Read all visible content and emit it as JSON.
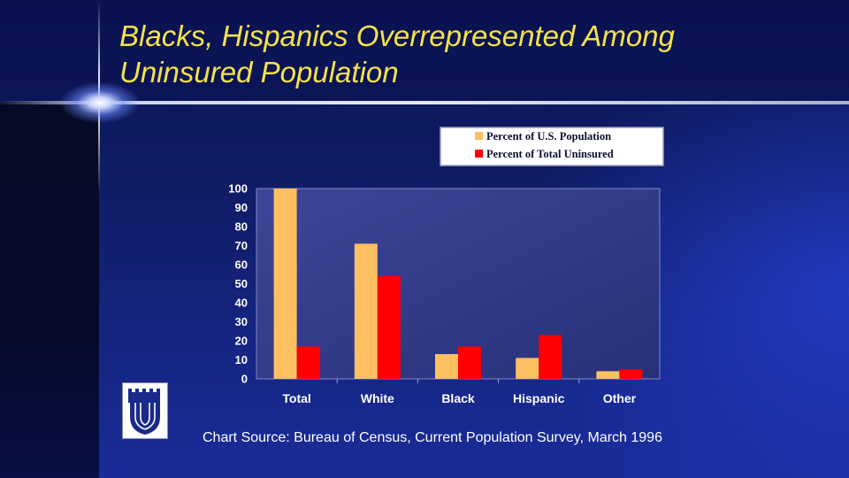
{
  "slide": {
    "title_line1": "Blacks, Hispanics Overrepresented Among",
    "title_line2": "Uninsured Population",
    "source": "Chart Source: Bureau of Census, Current Population Survey, March 1996",
    "logo_icon": "duke-chapel-logo-icon"
  },
  "chart_data": {
    "type": "bar",
    "categories": [
      "Total",
      "White",
      "Black",
      "Hispanic",
      "Other"
    ],
    "series": [
      {
        "name": "Percent of U.S. Population",
        "values": [
          100,
          71,
          13,
          11,
          4
        ],
        "color": "#ffc062"
      },
      {
        "name": "Percent of Total Uninsured",
        "values": [
          17,
          54,
          17,
          23,
          5
        ],
        "color": "#ff0000"
      }
    ],
    "title": "",
    "xlabel": "",
    "ylabel": "",
    "ylim": [
      0,
      100
    ],
    "yticks": [
      "0",
      "10",
      "20",
      "30",
      "40",
      "50",
      "60",
      "70",
      "80",
      "90",
      "100"
    ],
    "grid": false,
    "legend_position": "top-right"
  }
}
